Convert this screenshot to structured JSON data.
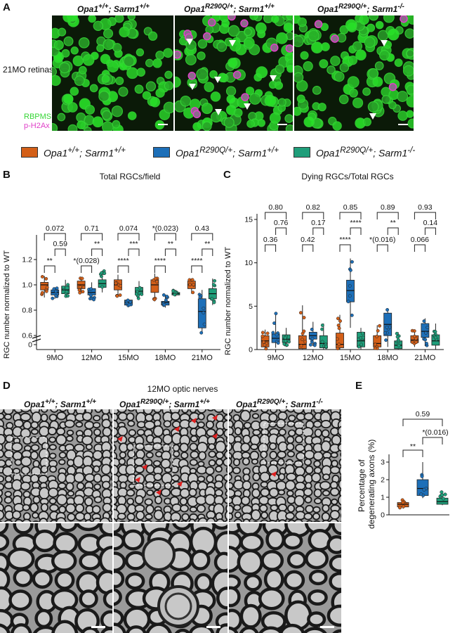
{
  "panel_a": {
    "letter": "A",
    "row_label": "21MO retinas",
    "genotypes": [
      {
        "base": "Opa1",
        "sup": "+/+",
        "rest": "; Sarm1",
        "sup2": "+/+"
      },
      {
        "base": "Opa1",
        "sup": "R290Q/+",
        "rest": "; Sarm1",
        "sup2": "+/+"
      },
      {
        "base": "Opa1",
        "sup": "R290Q/+",
        "rest": "; Sarm1",
        "sup2": "-/-"
      }
    ],
    "stain_1": "RBPMS",
    "stain_2": "p-H2Ax",
    "stain_1_color": "#35d635",
    "stain_2_color": "#e040c8"
  },
  "legend": [
    {
      "base": "Opa1",
      "sup": "+/+",
      "rest": "; Sarm1",
      "sup2": "+/+",
      "color": "#d35f18"
    },
    {
      "base": "Opa1",
      "sup": "R290Q/+",
      "rest": "; Sarm1",
      "sup2": "+/+",
      "color": "#1d6fb8"
    },
    {
      "base": "Opa1",
      "sup": "R290Q/+",
      "rest": "; Sarm1",
      "sup2": "-/-",
      "color": "#1f9e7a"
    }
  ],
  "panel_b": {
    "letter": "B",
    "title": "Total RGCs/field",
    "ylabel": "RGC number normalized to WT",
    "yticks": [
      "1.2",
      "1.0",
      "0.8",
      "0.6",
      "0"
    ]
  },
  "panel_c": {
    "letter": "C",
    "title": "Dying RGCs/Total RGCs",
    "ylabel": "RGC number normalized to WT",
    "yticks": [
      "15",
      "10",
      "5",
      "0"
    ]
  },
  "panel_d": {
    "letter": "D",
    "title": "12MO optic nerves",
    "genotypes": [
      {
        "base": "Opa1",
        "sup": "+/+",
        "rest": "; Sarm1",
        "sup2": "+/+"
      },
      {
        "base": "Opa1",
        "sup": "R290Q/+",
        "rest": "; Sarm1",
        "sup2": "+/+"
      },
      {
        "base": "Opa1",
        "sup": "R290Q/+",
        "rest": "; Sarm1",
        "sup2": "-/-"
      }
    ]
  },
  "panel_e": {
    "letter": "E",
    "ylabel_1": "Percentage of",
    "ylabel_2": "degenerating axons (%)",
    "yticks": [
      "3",
      "2",
      "1",
      "0"
    ]
  },
  "chart_data": [
    {
      "type": "box",
      "panel": "B",
      "title": "Total RGCs/field",
      "ylabel": "RGC number normalized to WT",
      "categories": [
        "9MO",
        "12MO",
        "15MO",
        "18MO",
        "21MO"
      ],
      "ylim": [
        0.55,
        1.3
      ],
      "axis_break": [
        0.0,
        0.6
      ],
      "series_colors": [
        "#d35f18",
        "#1d6fb8",
        "#1f9e7a"
      ],
      "boxes": [
        [
          {
            "min": 0.9,
            "q1": 0.96,
            "med": 1.0,
            "q3": 1.02,
            "max": 1.07
          },
          {
            "min": 0.89,
            "q1": 0.92,
            "med": 0.94,
            "q3": 0.96,
            "max": 0.98
          },
          {
            "min": 0.91,
            "q1": 0.93,
            "med": 0.96,
            "q3": 0.99,
            "max": 1.04
          }
        ],
        [
          {
            "min": 0.93,
            "q1": 0.97,
            "med": 1.0,
            "q3": 1.03,
            "max": 1.06
          },
          {
            "min": 0.88,
            "q1": 0.92,
            "med": 0.94,
            "q3": 0.97,
            "max": 1.02
          },
          {
            "min": 0.94,
            "q1": 0.98,
            "med": 1.01,
            "q3": 1.04,
            "max": 1.11
          }
        ],
        [
          {
            "min": 0.91,
            "q1": 0.96,
            "med": 1.0,
            "q3": 1.04,
            "max": 1.08
          },
          {
            "min": 0.83,
            "q1": 0.84,
            "med": 0.86,
            "q3": 0.88,
            "max": 0.88
          },
          {
            "min": 0.88,
            "q1": 0.92,
            "med": 0.95,
            "q3": 0.98,
            "max": 1.03
          }
        ],
        [
          {
            "min": 0.87,
            "q1": 0.94,
            "med": 1.0,
            "q3": 1.04,
            "max": 1.09
          },
          {
            "min": 0.82,
            "q1": 0.84,
            "med": 0.86,
            "q3": 0.87,
            "max": 0.92
          },
          {
            "min": 0.91,
            "q1": 0.92,
            "med": 0.93,
            "q3": 0.94,
            "max": 0.96
          }
        ],
        [
          {
            "min": 0.93,
            "q1": 0.97,
            "med": 1.0,
            "q3": 1.03,
            "max": 1.05
          },
          {
            "min": 0.62,
            "q1": 0.66,
            "med": 0.79,
            "q3": 0.89,
            "max": 0.96
          },
          {
            "min": 0.84,
            "q1": 0.89,
            "med": 0.93,
            "q3": 0.97,
            "max": 1.05
          }
        ]
      ],
      "annotations": [
        {
          "category": "9MO",
          "top": "0.072",
          "mid": "0.59",
          "low": "**"
        },
        {
          "category": "12MO",
          "top": "0.71",
          "mid": "**",
          "low": "*(0.028)"
        },
        {
          "category": "15MO",
          "top": "0.074",
          "mid": "***",
          "low": "****"
        },
        {
          "category": "18MO",
          "top": "*(0.023)",
          "mid": "**",
          "low": "****"
        },
        {
          "category": "21MO",
          "top": "0.43",
          "mid": "**",
          "low": "****"
        }
      ]
    },
    {
      "type": "box",
      "panel": "C",
      "title": "Dying RGCs/Total RGCs",
      "ylabel": "RGC number normalized to WT",
      "categories": [
        "9MO",
        "12MO",
        "15MO",
        "18MO",
        "21MO"
      ],
      "ylim": [
        0,
        15
      ],
      "series_colors": [
        "#d35f18",
        "#1d6fb8",
        "#1f9e7a"
      ],
      "boxes": [
        [
          {
            "min": 0,
            "q1": 0.3,
            "med": 1.0,
            "q3": 1.6,
            "max": 2.3
          },
          {
            "min": 0.2,
            "q1": 0.8,
            "med": 1.3,
            "q3": 1.8,
            "max": 4.2
          },
          {
            "min": 0.3,
            "q1": 0.8,
            "med": 1.2,
            "q3": 1.7,
            "max": 2.5
          }
        ],
        [
          {
            "min": 0,
            "q1": 0.1,
            "med": 0.6,
            "q3": 1.6,
            "max": 5.1
          },
          {
            "min": 0.4,
            "q1": 1.2,
            "med": 1.6,
            "q3": 2.0,
            "max": 3.2
          },
          {
            "min": 0,
            "q1": 0.2,
            "med": 0.7,
            "q3": 1.6,
            "max": 3.0
          }
        ],
        [
          {
            "min": 0,
            "q1": 0.2,
            "med": 0.6,
            "q3": 1.9,
            "max": 4.0
          },
          {
            "min": 2.5,
            "q1": 5.5,
            "med": 6.8,
            "q3": 8.0,
            "max": 10.5
          },
          {
            "min": 0,
            "q1": 0.3,
            "med": 1.0,
            "q3": 2.0,
            "max": 2.5
          }
        ],
        [
          {
            "min": 0,
            "q1": 0.3,
            "med": 0.7,
            "q3": 1.6,
            "max": 2.8
          },
          {
            "min": 0.3,
            "q1": 1.6,
            "med": 2.9,
            "q3": 4.2,
            "max": 4.6
          },
          {
            "min": 0,
            "q1": 0.1,
            "med": 0.5,
            "q3": 1.0,
            "max": 2.0
          }
        ],
        [
          {
            "min": 0.3,
            "q1": 0.8,
            "med": 1.1,
            "q3": 1.6,
            "max": 2.3
          },
          {
            "min": 0.4,
            "q1": 1.4,
            "med": 2.1,
            "q3": 3.0,
            "max": 3.6
          },
          {
            "min": 0,
            "q1": 0.5,
            "med": 1.0,
            "q3": 1.7,
            "max": 3.0
          }
        ]
      ],
      "annotations": [
        {
          "category": "9MO",
          "top": "0.80",
          "mid": "0.76",
          "low": "0.36"
        },
        {
          "category": "12MO",
          "top": "0.82",
          "mid": "0.17",
          "low": "0.42"
        },
        {
          "category": "15MO",
          "top": "0.85",
          "mid": "****",
          "low": "****"
        },
        {
          "category": "18MO",
          "top": "0.89",
          "mid": "**",
          "low": "*(0.016)"
        },
        {
          "category": "21MO",
          "top": "0.93",
          "mid": "0.14",
          "low": "0.066"
        }
      ]
    },
    {
      "type": "box",
      "panel": "E",
      "ylabel": "Percentage of degenerating axons (%)",
      "ylim": [
        0,
        3.2
      ],
      "series_colors": [
        "#d35f18",
        "#1d6fb8",
        "#1f9e7a"
      ],
      "boxes": [
        {
          "min": 0.35,
          "q1": 0.45,
          "med": 0.6,
          "q3": 0.7,
          "max": 0.9
        },
        {
          "min": 0.95,
          "q1": 1.1,
          "med": 1.5,
          "q3": 2.0,
          "max": 3.0
        },
        {
          "min": 0.55,
          "q1": 0.6,
          "med": 0.75,
          "q3": 0.95,
          "max": 1.3
        }
      ],
      "annotations": {
        "top": "0.59",
        "right": "*(0.016)",
        "left": "**"
      }
    }
  ]
}
